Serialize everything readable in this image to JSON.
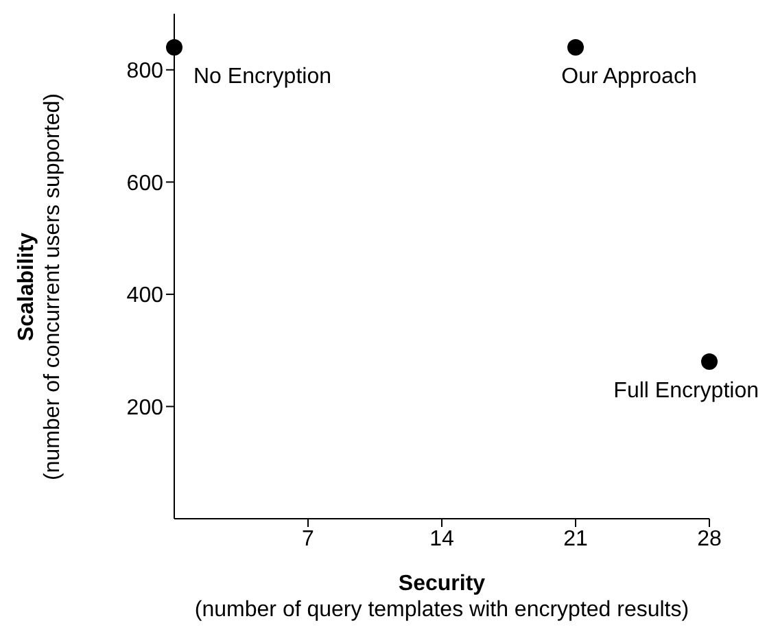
{
  "chart_data": {
    "type": "scatter",
    "xlabel": "Security\n(number of query templates with encrypted results)",
    "ylabel": "Scalability\n(number of concurrent users supported)",
    "x": [
      0,
      21,
      28
    ],
    "values": [
      840,
      840,
      280
    ],
    "color": "#000000",
    "marker": "circle",
    "xlim": [
      0,
      28
    ],
    "xticks": [
      7,
      14,
      21,
      28
    ],
    "ylim": [
      0,
      900
    ],
    "yticks": [
      200,
      400,
      600,
      800
    ],
    "grid": false,
    "legend": false,
    "annotations": [
      {
        "text": "No Encryption",
        "x": 0,
        "y": 840
      },
      {
        "text": "Our Approach",
        "x": 21,
        "y": 840
      },
      {
        "text": "Full Encryption",
        "x": 28,
        "y": 280
      }
    ]
  }
}
